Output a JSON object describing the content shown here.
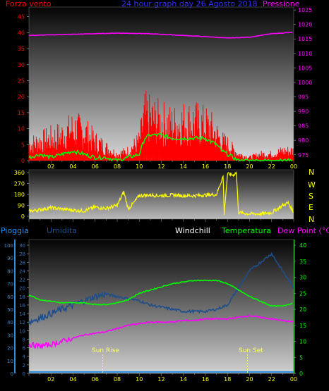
{
  "header": {
    "left_label": "Forza vento",
    "title": "24 hour graph day  26 Agosto  2018",
    "right_label": "Pressione"
  },
  "middle": {
    "compass": [
      "N",
      "W",
      "S",
      "E",
      "N"
    ]
  },
  "bottom_header": {
    "pioggia": "Pioggia",
    "umidita": "Umidita",
    "windchill": "Windchill",
    "temperatura": "Temperatura",
    "dewpoint": "Dew Point (°C)"
  },
  "annotations": {
    "sunrise": "Sun Rise",
    "sunset": "Sun Set"
  },
  "colors": {
    "wind_gust": "#ff0000",
    "wind_avg": "#00ff00",
    "pressure": "#ff00ff",
    "direction": "#ffff00",
    "humidity": "#1f4e8c",
    "temperature": "#00ff00",
    "dewpoint": "#ff00ff",
    "rain": "#2a8fe0"
  },
  "chart_data": [
    {
      "type": "line",
      "title": "24 hour graph day  26 Agosto  2018",
      "x_ticks": [
        "02",
        "04",
        "06",
        "08",
        "10",
        "12",
        "14",
        "16",
        "18",
        "20",
        "22",
        "00"
      ],
      "y_left_ticks": [
        "0",
        "5",
        "10",
        "15",
        "20",
        "25",
        "30",
        "35",
        "40",
        "45"
      ],
      "y_right_ticks": [
        "975",
        "980",
        "985",
        "990",
        "995",
        "1000",
        "1005",
        "1010",
        "1015",
        "1020",
        "1025"
      ],
      "ylim_left": [
        0,
        48
      ],
      "ylim_right": [
        973,
        1026
      ],
      "series": [
        {
          "name": "Forza vento",
          "x": [
            0,
            1,
            2,
            3,
            4,
            5,
            6,
            7,
            8,
            9,
            10,
            10.5,
            11,
            12,
            13,
            14,
            15,
            16,
            16.5,
            17,
            17.5,
            18,
            19,
            20,
            21,
            22,
            23,
            24
          ],
          "values": [
            5,
            6,
            7,
            8,
            10,
            9,
            6,
            4,
            2,
            3,
            6,
            14,
            13,
            12,
            11,
            12,
            12,
            11,
            10,
            8,
            6,
            5,
            2,
            1,
            2,
            2,
            3,
            3
          ]
        },
        {
          "name": "",
          "x": [
            0,
            1,
            2,
            3,
            4,
            5,
            6,
            7,
            8,
            9,
            10,
            10.5,
            11,
            12,
            13,
            14,
            15,
            16,
            16.5,
            17,
            17.5,
            18,
            19,
            20,
            21,
            22,
            23,
            24
          ],
          "values": [
            1,
            2,
            1,
            2,
            3,
            2,
            1,
            1,
            0,
            1,
            2,
            7,
            8,
            8,
            7,
            7,
            7,
            7,
            6,
            5,
            3,
            2,
            0,
            0,
            0,
            0,
            0,
            0
          ]
        },
        {
          "name": "Pressione",
          "x": [
            0,
            2,
            4,
            6,
            8,
            10,
            12,
            14,
            16,
            18,
            20,
            22,
            24
          ],
          "values": [
            1016.2,
            1016.4,
            1016.6,
            1016.8,
            1017.0,
            1016.9,
            1016.6,
            1016.2,
            1015.8,
            1015.3,
            1015.6,
            1016.8,
            1017.3
          ]
        }
      ]
    },
    {
      "type": "line",
      "y_ticks": [
        "0",
        "90",
        "180",
        "270",
        "360"
      ],
      "ylim": [
        0,
        360
      ],
      "x_ticks": [
        "02",
        "04",
        "06",
        "08",
        "10",
        "12",
        "14",
        "16",
        "18",
        "20",
        "22",
        "00"
      ],
      "series": [
        {
          "name": "",
          "x": [
            0,
            1,
            2,
            3,
            4,
            5,
            6,
            7,
            8,
            8.6,
            9,
            9.5,
            10,
            11,
            12,
            13,
            14,
            15,
            16,
            17,
            17.6,
            17.7,
            18,
            18.5,
            18.8,
            19,
            20,
            21,
            22,
            23,
            23.5,
            24
          ],
          "values": [
            40,
            55,
            70,
            60,
            50,
            45,
            75,
            65,
            90,
            200,
            60,
            110,
            170,
            175,
            170,
            175,
            170,
            170,
            175,
            180,
            330,
            20,
            350,
            340,
            360,
            30,
            20,
            20,
            30,
            90,
            110,
            30
          ]
        }
      ]
    },
    {
      "type": "line",
      "x_ticks": [
        "02",
        "04",
        "06",
        "08",
        "10",
        "12",
        "14",
        "16",
        "18",
        "20",
        "22",
        "00"
      ],
      "y_rain_ticks": [
        "0",
        "10",
        "20",
        "30",
        "40",
        "50",
        "60",
        "70",
        "80",
        "90",
        "100"
      ],
      "y_humidity_ticks": [
        "0",
        "2",
        "4",
        "6",
        "8",
        "10",
        "12",
        "14",
        "16",
        "18",
        "20",
        "22",
        "24",
        "26",
        "28",
        "30"
      ],
      "y_temp_ticks": [
        "0",
        "5",
        "10",
        "15",
        "20",
        "25",
        "30",
        "35",
        "40"
      ],
      "ylim_humidity": [
        0,
        30
      ],
      "ylim_temperature": [
        0,
        40
      ],
      "series": [
        {
          "name": "Umidita",
          "x": [
            0,
            1,
            2,
            3,
            4,
            5,
            6,
            7,
            8,
            9,
            10,
            11,
            12,
            13,
            14,
            15,
            16,
            17,
            18,
            19,
            20,
            21,
            22,
            23,
            24
          ],
          "values": [
            12,
            13,
            14,
            15,
            16,
            17,
            18,
            18.5,
            18,
            17.5,
            17,
            16,
            15.5,
            15,
            14.5,
            14.5,
            14.5,
            15,
            16,
            20,
            24,
            26,
            28,
            24,
            20
          ]
        },
        {
          "name": "Temperatura",
          "x": [
            0,
            1,
            2,
            3,
            4,
            5,
            6,
            7,
            8,
            9,
            10,
            11,
            12,
            13,
            14,
            15,
            16,
            17,
            18,
            19,
            20,
            21,
            22,
            23,
            24
          ],
          "values": [
            24.5,
            23,
            22.5,
            22,
            22,
            22,
            21.5,
            21.5,
            22,
            23,
            25,
            26,
            27,
            28,
            28.5,
            29,
            29,
            29,
            28,
            26,
            24,
            22.5,
            21,
            21,
            22
          ]
        },
        {
          "name": "Dew Point (°C)",
          "x": [
            0,
            1,
            2,
            3,
            4,
            5,
            6,
            7,
            8,
            9,
            10,
            11,
            12,
            13,
            14,
            15,
            16,
            17,
            18,
            19,
            20,
            21,
            22,
            23,
            24
          ],
          "values": [
            9,
            8.5,
            9,
            10,
            11,
            12,
            12.5,
            13,
            14,
            15,
            15.5,
            16,
            16,
            16,
            16.5,
            16.5,
            17,
            17,
            17,
            17.5,
            18,
            17.5,
            17,
            16.5,
            16
          ]
        },
        {
          "name": "Pioggia",
          "x": [
            0,
            24
          ],
          "values": [
            0,
            0
          ]
        }
      ],
      "sunrise_hour": 6.7,
      "sunset_hour": 19.8
    }
  ]
}
